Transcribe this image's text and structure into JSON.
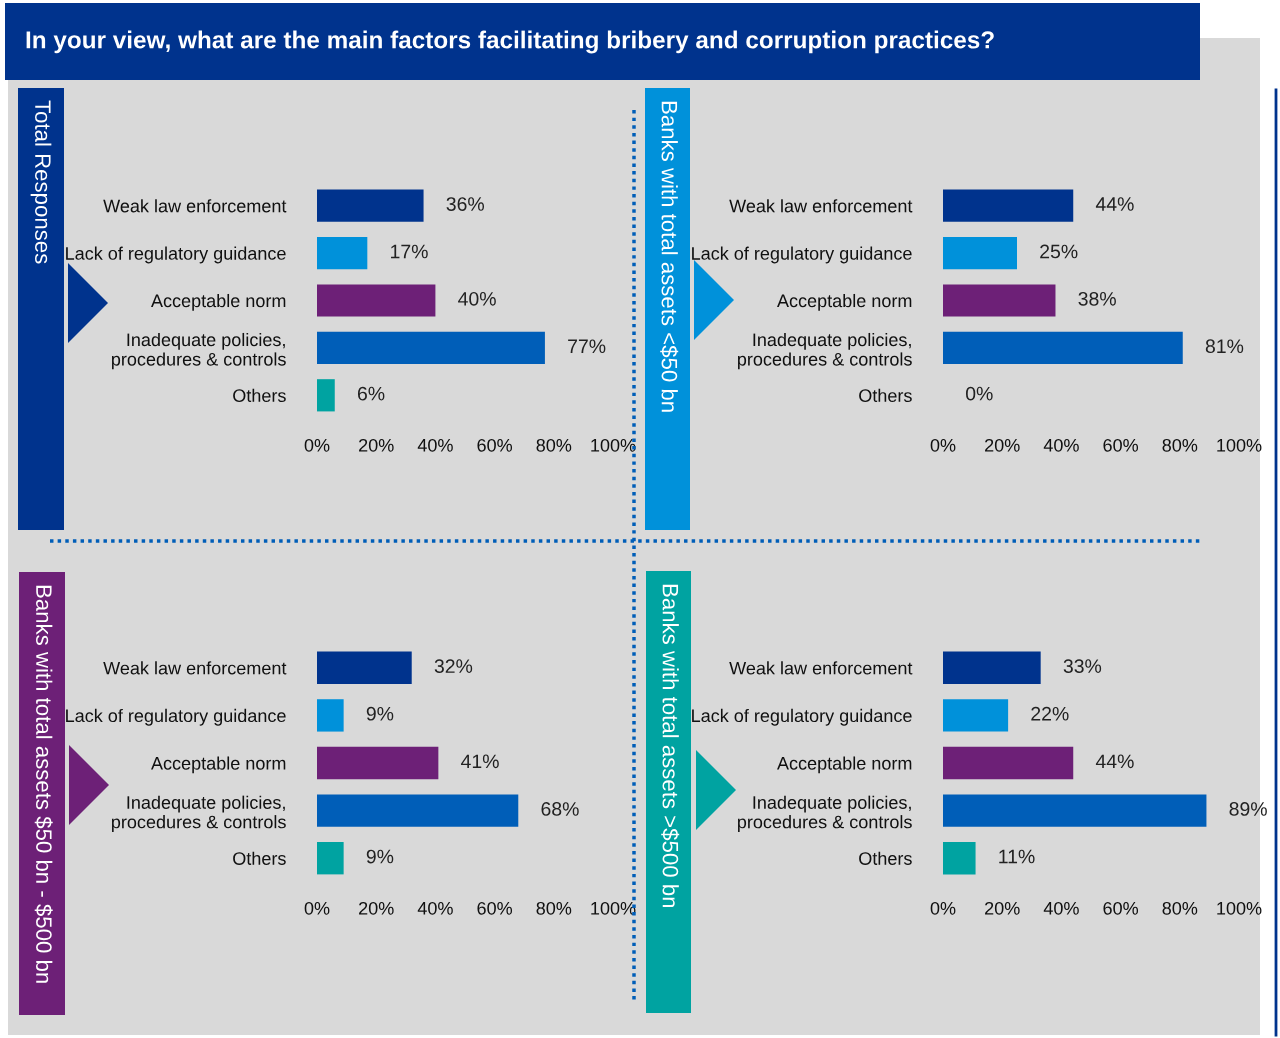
{
  "chart_data": [
    {
      "type": "bar",
      "orientation": "horizontal",
      "title": "In your view, what are the main factors facilitating bribery and corruption practices?",
      "subtitle": "Total Responses",
      "categories": [
        "Weak law enforcement",
        "Lack of regulatory guidance",
        "Acceptable norm",
        "Inadequate policies,\nprocedures & controls",
        "Others"
      ],
      "values": [
        36,
        17,
        40,
        77,
        6
      ],
      "value_labels": [
        "36%",
        "17%",
        "40%",
        "77%",
        "6%"
      ],
      "colors": [
        "#00338d",
        "#0091da",
        "#6d2077",
        "#005eb8",
        "#00a3a1"
      ],
      "xlim": [
        0,
        100
      ],
      "xticks": [
        {
          "value": 0,
          "label": "0%"
        },
        {
          "value": 20,
          "label": "20%"
        },
        {
          "value": 40,
          "label": "40%"
        },
        {
          "value": 60,
          "label": "60%"
        },
        {
          "value": 80,
          "label": "80%"
        },
        {
          "value": 100,
          "label": "100%"
        }
      ]
    },
    {
      "type": "bar",
      "orientation": "horizontal",
      "subtitle": "Banks with total assets <$50 bn",
      "categories": [
        "Weak law enforcement",
        "Lack of regulatory guidance",
        "Acceptable norm",
        "Inadequate policies,\nprocedures & controls",
        "Others"
      ],
      "values": [
        44,
        25,
        38,
        81,
        0
      ],
      "value_labels": [
        "44%",
        "25%",
        "38%",
        "81%",
        "0%"
      ],
      "colors": [
        "#00338d",
        "#0091da",
        "#6d2077",
        "#005eb8",
        "#00a3a1"
      ],
      "xlim": [
        0,
        100
      ],
      "xticks": [
        {
          "value": 0,
          "label": "0%"
        },
        {
          "value": 20,
          "label": "20%"
        },
        {
          "value": 40,
          "label": "40%"
        },
        {
          "value": 60,
          "label": "60%"
        },
        {
          "value": 80,
          "label": "80%"
        },
        {
          "value": 100,
          "label": "100%"
        }
      ]
    },
    {
      "type": "bar",
      "orientation": "horizontal",
      "subtitle": "Banks with total assets $50 bn - $500 bn",
      "categories": [
        "Weak law enforcement",
        "Lack of regulatory guidance",
        "Acceptable norm",
        "Inadequate policies,\nprocedures & controls",
        "Others"
      ],
      "values": [
        32,
        9,
        41,
        68,
        9
      ],
      "value_labels": [
        "32%",
        "9%",
        "41%",
        "68%",
        "9%"
      ],
      "colors": [
        "#00338d",
        "#0091da",
        "#6d2077",
        "#005eb8",
        "#00a3a1"
      ],
      "xlim": [
        0,
        100
      ],
      "xticks": [
        {
          "value": 0,
          "label": "0%"
        },
        {
          "value": 20,
          "label": "20%"
        },
        {
          "value": 40,
          "label": "40%"
        },
        {
          "value": 60,
          "label": "60%"
        },
        {
          "value": 80,
          "label": "80%"
        },
        {
          "value": 100,
          "label": "100%"
        }
      ]
    },
    {
      "type": "bar",
      "orientation": "horizontal",
      "subtitle": "Banks with total assets >$500 bn",
      "categories": [
        "Weak law enforcement",
        "Lack of regulatory guidance",
        "Acceptable norm",
        "Inadequate policies,\nprocedures & controls",
        "Others"
      ],
      "values": [
        33,
        22,
        44,
        89,
        11
      ],
      "value_labels": [
        "33%",
        "22%",
        "44%",
        "89%",
        "11%"
      ],
      "colors": [
        "#00338d",
        "#0091da",
        "#6d2077",
        "#005eb8",
        "#00a3a1"
      ],
      "xlim": [
        0,
        100
      ],
      "xticks": [
        {
          "value": 0,
          "label": "0%"
        },
        {
          "value": 20,
          "label": "20%"
        },
        {
          "value": 40,
          "label": "40%"
        },
        {
          "value": 60,
          "label": "60%"
        },
        {
          "value": 80,
          "label": "80%"
        },
        {
          "value": 100,
          "label": "100%"
        }
      ]
    }
  ]
}
